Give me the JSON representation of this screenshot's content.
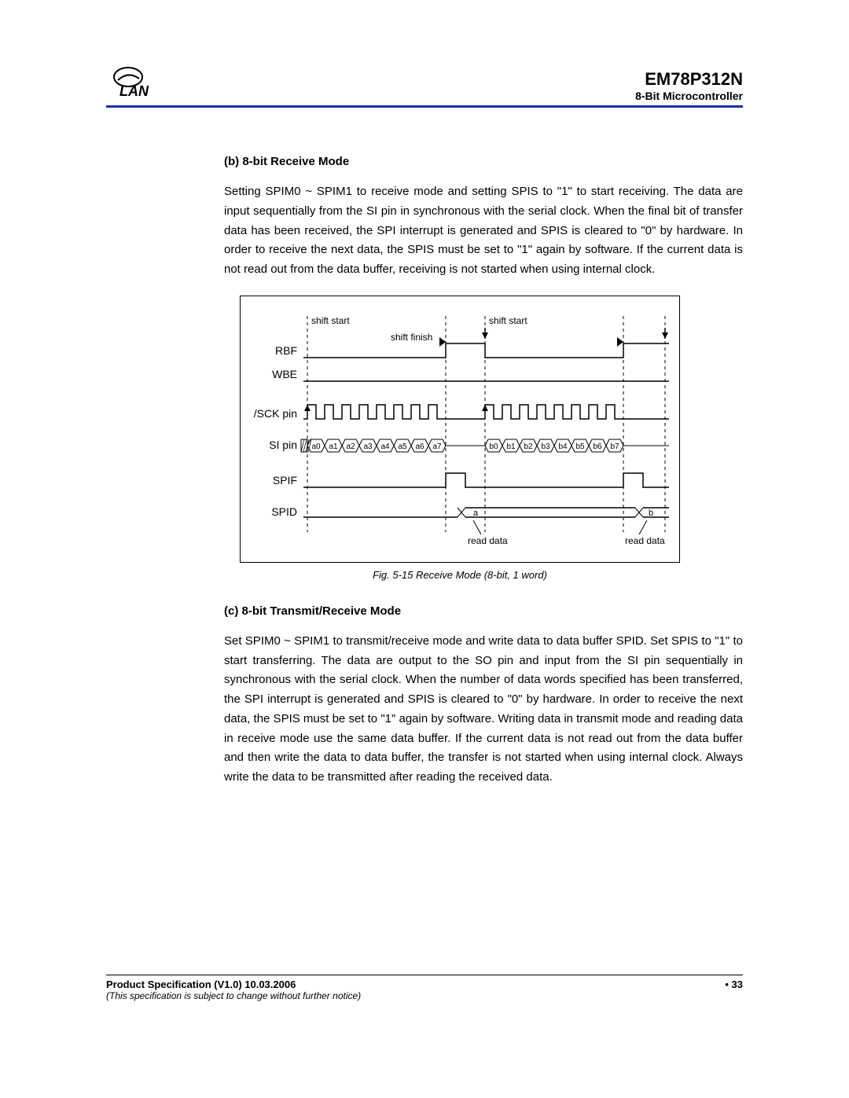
{
  "header": {
    "product_code": "EM78P312N",
    "product_sub": "8-Bit Microcontroller"
  },
  "section_b": {
    "title": "(b)   8-bit Receive Mode",
    "text": "Setting SPIM0 ~ SPIM1 to receive mode and setting SPIS to \"1\" to start receiving. The data are input sequentially from the SI pin in synchronous with the serial clock.  When the final bit of transfer data has been received, the SPI interrupt is generated and SPIS is cleared to \"0\" by hardware.  In order to receive the next data, the SPIS must be set to \"1\" again by software.  If the current data is not read out from the data buffer, receiving is not started when using internal clock."
  },
  "diagram": {
    "signals": [
      "RBF",
      "WBE",
      "/SCK pin",
      "SI pin",
      "SPIF",
      "SPID"
    ],
    "annot_shift_start": "shift start",
    "annot_shift_finish": "shift finish",
    "annot_read_data": "read data",
    "si_bits_a": [
      "a0",
      "a1",
      "a2",
      "a3",
      "a4",
      "a5",
      "a6",
      "a7"
    ],
    "si_bits_b": [
      "b0",
      "b1",
      "b2",
      "b3",
      "b4",
      "b5",
      "b6",
      "b7"
    ],
    "spid_a": "a",
    "spid_b": "b",
    "caption": "Fig. 5-15  Receive Mode (8-bit, 1 word)",
    "line_color": "#000000",
    "dash_color": "#000000",
    "bg": "#ffffff"
  },
  "section_c": {
    "title": "(c)   8-bit Transmit/Receive Mode",
    "text": "Set SPIM0 ~ SPIM1 to transmit/receive mode and write data to data buffer SPID. Set SPIS to \"1\" to start transferring.  The data are output to the SO pin and input from the SI pin sequentially in synchronous with the serial clock.  When the number of data words specified has been transferred, the SPI interrupt is generated and SPIS is cleared to \"0\" by hardware.  In order to receive the next data, the SPIS must be set to \"1\" again by software.  Writing data in transmit mode and reading data in receive mode use the same data buffer.  If the current data is not read out from the data buffer and then write the data to data buffer, the transfer is not started when using internal clock.  Always write the data to be transmitted after reading the received data."
  },
  "footer": {
    "left": "Product Specification (V1.0) 10.03.2006",
    "right": "• 33",
    "note": "(This specification is subject to change without further notice)"
  }
}
